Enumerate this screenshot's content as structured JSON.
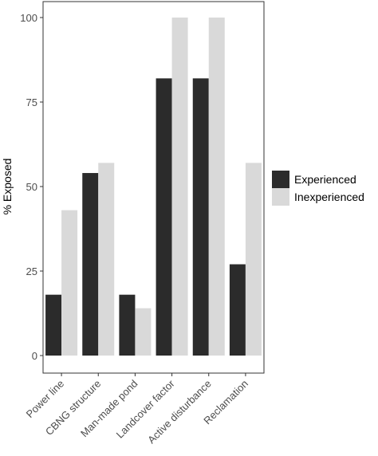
{
  "chart_data": {
    "type": "bar",
    "categories": [
      "Power line",
      "CBNG structure",
      "Man-made pond",
      "Landcover factor",
      "Active disturbance",
      "Reclamation"
    ],
    "series": [
      {
        "name": "Experienced",
        "values": [
          18,
          54,
          18,
          82,
          82,
          27
        ],
        "color": "#2b2b2b"
      },
      {
        "name": "Inexperienced",
        "values": [
          43,
          57,
          14,
          100,
          100,
          57
        ],
        "color": "#d9d9d9"
      }
    ],
    "xlabel": "",
    "ylabel": "% Exposed",
    "ylim": [
      0,
      100
    ],
    "yticks": [
      0,
      25,
      50,
      75,
      100
    ],
    "grid": false,
    "legend_position": "right",
    "panel_border_color": "#333333"
  }
}
